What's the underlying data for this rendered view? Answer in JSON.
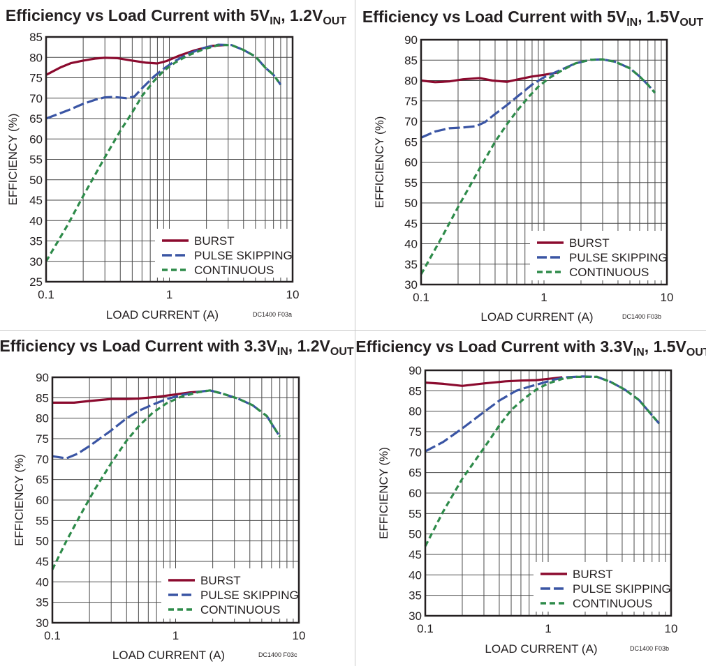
{
  "chart_data": [
    {
      "type": "line",
      "title": {
        "main": "Efficiency vs Load Current with 5V",
        "sub1": "IN",
        "mid": ", 1.2V",
        "sub2": "OUT"
      },
      "xlabel": "LOAD CURRENT (A)",
      "ylabel": "EFFICIENCY (%)",
      "code": "DC1400 F03a",
      "xscale": "log",
      "xlim": [
        0.1,
        10
      ],
      "ylim": [
        25,
        85
      ],
      "xticks": [
        "0.1",
        "1",
        "10"
      ],
      "yticks": [
        25,
        30,
        35,
        40,
        45,
        50,
        55,
        60,
        65,
        70,
        75,
        80,
        85
      ],
      "grid": true,
      "legend_position": "bottom-right",
      "series": [
        {
          "name": "BURST",
          "color": "#8b0a2e",
          "style": "solid",
          "x": [
            0.1,
            0.13,
            0.16,
            0.2,
            0.25,
            0.3,
            0.38,
            0.5,
            0.65,
            0.8,
            0.95,
            1.2,
            1.6,
            2.2,
            2.8
          ],
          "y": [
            75.7,
            77.5,
            78.6,
            79.2,
            79.7,
            79.9,
            79.8,
            79.2,
            78.7,
            78.5,
            79.1,
            80.4,
            81.7,
            82.8,
            83
          ]
        },
        {
          "name": "PULSE SKIPPING",
          "color": "#3a55a4",
          "style": "dash",
          "x": [
            0.1,
            0.15,
            0.2,
            0.25,
            0.3,
            0.35,
            0.45,
            0.52,
            0.6,
            0.75,
            0.9,
            1.1,
            1.4,
            1.9,
            2.5,
            3.2,
            4,
            5,
            6,
            7,
            8
          ],
          "y": [
            65,
            67,
            68.6,
            69.6,
            70.2,
            70.3,
            70,
            70.4,
            72.4,
            75.3,
            77.2,
            79,
            80.8,
            82.3,
            83.1,
            83,
            81.8,
            80.2,
            77.5,
            75.7,
            73.3
          ]
        },
        {
          "name": "CONTINUOUS",
          "color": "#2e8b4a",
          "style": "shortdash",
          "x": [
            0.1,
            0.15,
            0.2,
            0.3,
            0.4,
            0.5,
            0.6,
            0.75,
            0.9,
            1.1,
            1.4,
            1.9,
            2.5,
            3.2,
            4,
            5,
            6,
            7,
            8
          ],
          "y": [
            30,
            39,
            46,
            55.5,
            62,
            66.5,
            70.5,
            74.2,
            76.7,
            78.6,
            80.4,
            82,
            83,
            83,
            81.8,
            80.2,
            77.5,
            75.7,
            73.3
          ]
        }
      ]
    },
    {
      "type": "line",
      "title": {
        "main": "Efficiency vs Load Current with 5V",
        "sub1": "IN",
        "mid": ", 1.5V",
        "sub2": "OUT"
      },
      "xlabel": "LOAD CURRENT (A)",
      "ylabel": "EFFICIENCY (%)",
      "code": "DC1400 F03b",
      "xscale": "log",
      "xlim": [
        0.1,
        10
      ],
      "ylim": [
        30,
        90
      ],
      "xticks": [
        "0.1",
        "1",
        "10"
      ],
      "yticks": [
        30,
        35,
        40,
        45,
        50,
        55,
        60,
        65,
        70,
        75,
        80,
        85,
        90
      ],
      "grid": true,
      "legend_position": "bottom-right",
      "series": [
        {
          "name": "BURST",
          "color": "#8b0a2e",
          "style": "solid",
          "x": [
            0.1,
            0.13,
            0.17,
            0.22,
            0.3,
            0.38,
            0.5,
            0.62,
            0.8,
            1.0,
            1.3
          ],
          "y": [
            80,
            79.6,
            79.8,
            80.3,
            80.6,
            80,
            79.7,
            80.3,
            81,
            81.4,
            82
          ]
        },
        {
          "name": "PULSE SKIPPING",
          "color": "#3a55a4",
          "style": "dash",
          "x": [
            0.1,
            0.13,
            0.17,
            0.22,
            0.28,
            0.33,
            0.4,
            0.5,
            0.65,
            0.8,
            1.0,
            1.3,
            1.8,
            2.4,
            3.0,
            3.8,
            5,
            6,
            7,
            8
          ],
          "y": [
            66,
            67.5,
            68.3,
            68.5,
            68.8,
            69.8,
            71.8,
            74,
            76.8,
            79,
            80.8,
            82.3,
            84.2,
            85.1,
            85.2,
            84.6,
            83,
            81,
            79,
            77
          ]
        },
        {
          "name": "CONTINUOUS",
          "color": "#2e8b4a",
          "style": "shortdash",
          "x": [
            0.1,
            0.15,
            0.2,
            0.3,
            0.4,
            0.5,
            0.6,
            0.75,
            0.9,
            1.1,
            1.4,
            1.8,
            2.4,
            3.0,
            3.8,
            5,
            6,
            7,
            8
          ],
          "y": [
            32.5,
            42,
            49,
            58.5,
            65,
            69.3,
            72.5,
            76,
            78.5,
            80.6,
            82.5,
            84.2,
            85.1,
            85.2,
            84.6,
            83,
            81,
            79,
            77
          ]
        }
      ]
    },
    {
      "type": "line",
      "title": {
        "main": "Efficiency vs Load Current with 3.3V",
        "sub1": "IN",
        "mid": ", 1.2V",
        "sub2": "OUT"
      },
      "xlabel": "LOAD CURRENT (A)",
      "ylabel": "EFFICIENCY (%)",
      "code": "DC1400 F03c",
      "xscale": "log",
      "xlim": [
        0.1,
        10
      ],
      "ylim": [
        30,
        90
      ],
      "xticks": [
        "0.1",
        "1",
        "10"
      ],
      "yticks": [
        30,
        35,
        40,
        45,
        50,
        55,
        60,
        65,
        70,
        75,
        80,
        85,
        90
      ],
      "grid": true,
      "legend_position": "bottom-right",
      "series": [
        {
          "name": "BURST",
          "color": "#8b0a2e",
          "style": "solid",
          "x": [
            0.1,
            0.15,
            0.2,
            0.3,
            0.4,
            0.5,
            0.7,
            1.0,
            1.3,
            1.6
          ],
          "y": [
            83.8,
            83.8,
            84.2,
            84.7,
            84.7,
            84.8,
            85.2,
            85.8,
            86.3,
            86.5
          ]
        },
        {
          "name": "PULSE SKIPPING",
          "color": "#3a55a4",
          "style": "dash",
          "x": [
            0.1,
            0.13,
            0.16,
            0.2,
            0.3,
            0.4,
            0.5,
            0.65,
            0.85,
            1.1,
            1.5,
            1.9,
            2.4,
            3.2,
            4.2,
            5.5,
            7
          ],
          "y": [
            70.7,
            70.2,
            71.3,
            73.2,
            77,
            80,
            81.8,
            83.3,
            84.7,
            85.6,
            86.4,
            86.8,
            86,
            84.8,
            83.2,
            80.5,
            75.5
          ]
        },
        {
          "name": "CONTINUOUS",
          "color": "#2e8b4a",
          "style": "shortdash",
          "x": [
            0.1,
            0.13,
            0.17,
            0.22,
            0.3,
            0.4,
            0.5,
            0.65,
            0.85,
            1.1,
            1.5,
            1.9,
            2.4,
            3.2,
            4.2,
            5.5,
            7
          ],
          "y": [
            43,
            50,
            56.5,
            62.5,
            69,
            74.5,
            78,
            81.3,
            83.7,
            85.2,
            86.3,
            86.8,
            86,
            84.8,
            83.2,
            80.5,
            75.5
          ]
        }
      ]
    },
    {
      "type": "line",
      "title": {
        "main": "Efficiency vs Load Current with 3.3V",
        "sub1": "IN",
        "mid": ", 1.5V",
        "sub2": "OUT"
      },
      "xlabel": "LOAD CURRENT (A)",
      "ylabel": "EFFICIENCY (%)",
      "code": "DC1400 F03b",
      "xscale": "log",
      "xlim": [
        0.1,
        10
      ],
      "ylim": [
        30,
        90
      ],
      "xticks": [
        "0.1",
        "1",
        "10"
      ],
      "yticks": [
        30,
        35,
        40,
        45,
        50,
        55,
        60,
        65,
        70,
        75,
        80,
        85,
        90
      ],
      "grid": true,
      "legend_position": "bottom-right",
      "series": [
        {
          "name": "BURST",
          "color": "#8b0a2e",
          "style": "solid",
          "x": [
            0.1,
            0.14,
            0.2,
            0.3,
            0.45,
            0.6,
            0.8,
            1.0,
            1.3
          ],
          "y": [
            87,
            86.7,
            86.2,
            86.8,
            87.3,
            87.5,
            87.6,
            87.9,
            88.3
          ]
        },
        {
          "name": "PULSE SKIPPING",
          "color": "#3a55a4",
          "style": "dash",
          "x": [
            0.1,
            0.14,
            0.2,
            0.3,
            0.4,
            0.55,
            0.7,
            0.9,
            1.1,
            1.4,
            1.9,
            2.5,
            3.2,
            4.2,
            5.5,
            7,
            8
          ],
          "y": [
            70.2,
            72.5,
            75.8,
            79.8,
            82.6,
            85,
            86,
            86.9,
            87.7,
            88.3,
            88.5,
            88.4,
            87.2,
            85.3,
            82.7,
            79,
            77
          ]
        },
        {
          "name": "CONTINUOUS",
          "color": "#2e8b4a",
          "style": "shortdash",
          "x": [
            0.1,
            0.14,
            0.2,
            0.3,
            0.4,
            0.5,
            0.65,
            0.8,
            1.0,
            1.3,
            1.7,
            2.5,
            3.2,
            4.2,
            5.5,
            7,
            8
          ],
          "y": [
            47,
            55.5,
            63.5,
            71,
            76.5,
            80.3,
            83.3,
            85.3,
            86.8,
            87.9,
            88.4,
            88.4,
            87.2,
            85.3,
            82.7,
            79,
            77
          ]
        }
      ]
    }
  ]
}
